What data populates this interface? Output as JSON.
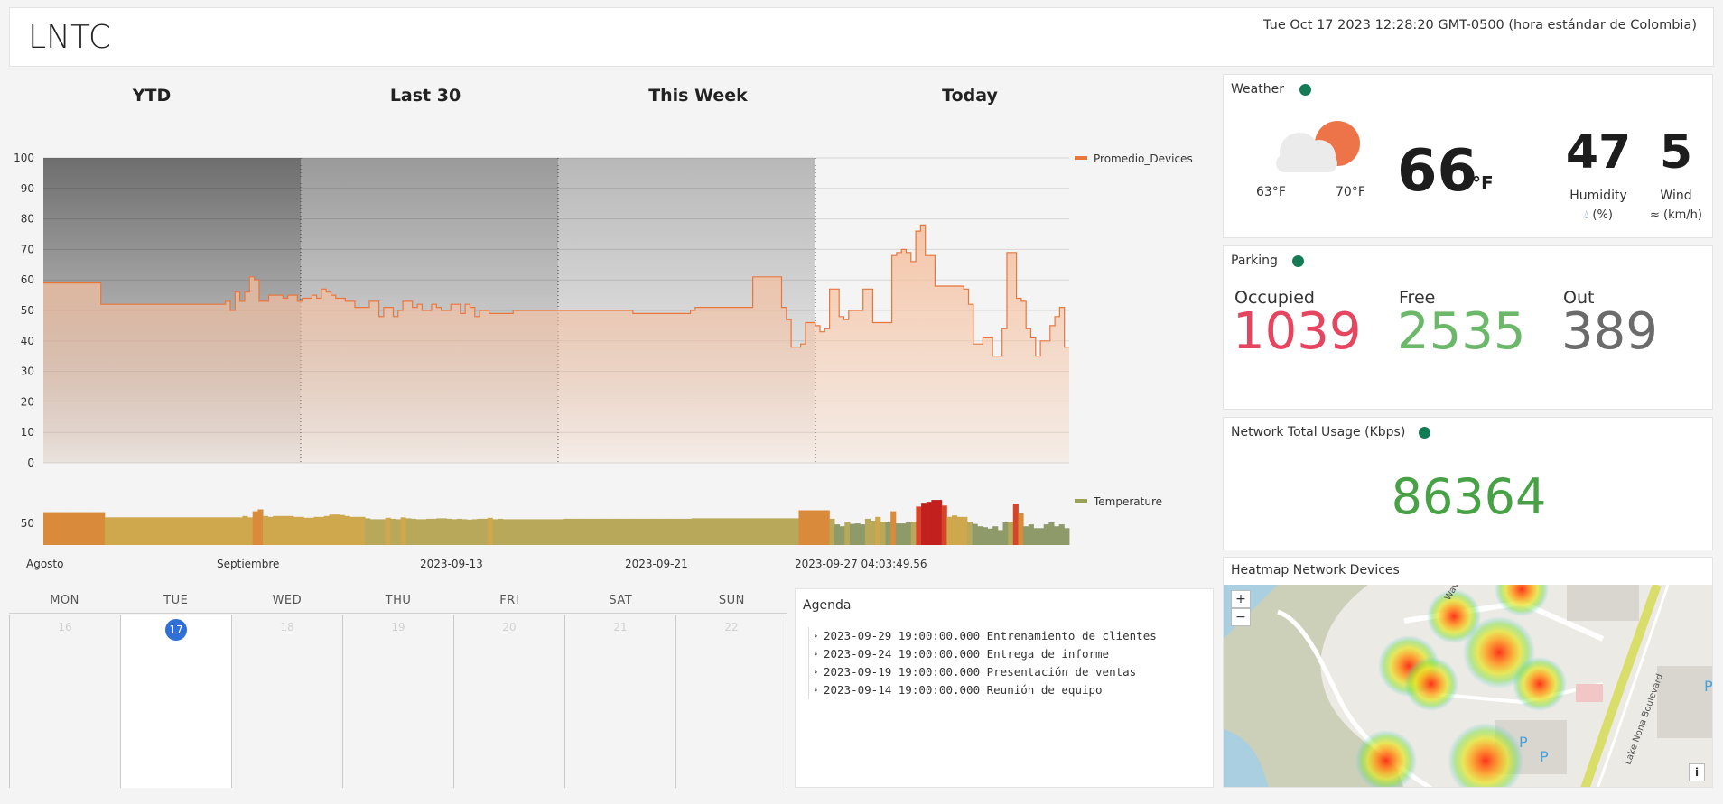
{
  "header": {
    "title": "LNTC",
    "clock": "Tue Oct 17 2023 12:28:20 GMT-0500 (hora estándar de Colombia)"
  },
  "periods": [
    "YTD",
    "Last 30",
    "This Week",
    "Today"
  ],
  "chart_data": [
    {
      "type": "area",
      "ylim": [
        0,
        100
      ],
      "yticks": [
        "100",
        "90",
        "80",
        "70",
        "60",
        "50",
        "40",
        "30",
        "20",
        "10",
        "0"
      ],
      "legend": "Promedio_Devices",
      "series_color": "#e8773e",
      "values": [
        59,
        59,
        59,
        59,
        59,
        59,
        59,
        59,
        59,
        59,
        59,
        59,
        52,
        52,
        52,
        52,
        52,
        52,
        52,
        52,
        52,
        52,
        52,
        52,
        52,
        52,
        52,
        52,
        52,
        52,
        52,
        52,
        52,
        52,
        52,
        52,
        52,
        52,
        53,
        50,
        56,
        53,
        56,
        61,
        60,
        53,
        53,
        55,
        55,
        55,
        54,
        55,
        55,
        53,
        54,
        54,
        55,
        54,
        57,
        56,
        55,
        54,
        54,
        53,
        53,
        51,
        51,
        51,
        53,
        53,
        48,
        51,
        51,
        48,
        50,
        53,
        53,
        51,
        52,
        50,
        50,
        52,
        51,
        50,
        50,
        52,
        52,
        49,
        52,
        51,
        48,
        50,
        50,
        49,
        49,
        49,
        49,
        49,
        50,
        50,
        50,
        50,
        50,
        50,
        50,
        50,
        50,
        50,
        50,
        50,
        50,
        50,
        50,
        50,
        50,
        50,
        50,
        50,
        50,
        50,
        50,
        50,
        50,
        49,
        49,
        49,
        49,
        49,
        49,
        49,
        49,
        49,
        49,
        49,
        49,
        50,
        51,
        51,
        51,
        51,
        51,
        51,
        51,
        51,
        51,
        51,
        51,
        51,
        61,
        61,
        61,
        61,
        61,
        61,
        51,
        47,
        38,
        38,
        39,
        46,
        46,
        45,
        43,
        44,
        57,
        57,
        48,
        47,
        50,
        50,
        50,
        57,
        57,
        46,
        46,
        46,
        46,
        68,
        69,
        70,
        69,
        66,
        76,
        78,
        68,
        68,
        58,
        58,
        58,
        58,
        58,
        58,
        57,
        52,
        39,
        39,
        41,
        41,
        35,
        35,
        44,
        69,
        69,
        54,
        53,
        44,
        41,
        35,
        40,
        40,
        45,
        48,
        51,
        38
      ],
      "x_labels": [
        "Agosto",
        "Septiembre",
        "2023-09-13",
        "2023-09-21",
        "2023-09-27 04:03:49.56"
      ]
    },
    {
      "type": "bar",
      "legend": "Temperature",
      "series_color": "#9aa25a",
      "ytick": "50",
      "values": [
        70,
        70,
        70,
        70,
        70,
        70,
        70,
        70,
        70,
        70,
        70,
        70,
        59,
        59,
        59,
        59,
        59,
        59,
        59,
        59,
        59,
        59,
        59,
        59,
        59,
        59,
        59,
        59,
        59,
        59,
        59,
        59,
        59,
        59,
        59,
        59,
        59,
        59,
        59,
        62,
        59,
        72,
        76,
        62,
        60,
        62,
        62,
        62,
        62,
        60,
        60,
        58,
        58,
        60,
        60,
        62,
        65,
        65,
        64,
        62,
        60,
        60,
        60,
        57,
        55,
        55,
        55,
        58,
        56,
        55,
        59,
        57,
        56,
        55,
        55,
        56,
        56,
        57,
        57,
        56,
        55,
        56,
        55,
        54,
        55,
        56,
        56,
        58,
        55,
        56,
        55,
        55,
        55,
        55,
        55,
        55,
        55,
        55,
        55,
        55,
        55,
        55,
        56,
        56,
        56,
        56,
        56,
        56,
        56,
        56,
        56,
        56,
        56,
        56,
        56,
        56,
        56,
        56,
        56,
        56,
        56,
        56,
        56,
        56,
        56,
        56,
        56,
        57,
        57,
        57,
        57,
        57,
        57,
        57,
        57,
        57,
        57,
        57,
        57,
        57,
        57,
        57,
        57,
        57,
        57,
        57,
        57,
        57,
        74,
        74,
        74,
        74,
        74,
        74,
        56,
        44,
        40,
        50,
        45,
        46,
        44,
        56,
        52,
        60,
        50,
        48,
        72,
        46,
        46,
        48,
        50,
        82,
        90,
        92,
        96,
        96,
        84,
        60,
        63,
        60,
        60,
        50,
        45,
        40,
        38,
        35,
        40,
        32,
        48,
        50,
        88,
        68,
        40,
        44,
        36,
        36,
        44,
        48,
        40,
        44,
        36
      ]
    }
  ],
  "calendar": {
    "days": [
      "MON",
      "TUE",
      "WED",
      "THU",
      "FRI",
      "SAT",
      "SUN"
    ],
    "dates": [
      "16",
      "17",
      "18",
      "19",
      "20",
      "21",
      "22"
    ],
    "today_index": 1
  },
  "agenda": {
    "title": "Agenda",
    "items": [
      "2023-09-29 19:00:00.000 Entrenamiento de clientes",
      "2023-09-24 19:00:00.000 Entrega de informe",
      "2023-09-19 19:00:00.000 Presentación de ventas",
      "2023-09-14 19:00:00.000 Reunión de equipo"
    ]
  },
  "weather": {
    "title": "Weather",
    "low": "63°F",
    "high": "70°F",
    "temp": "66",
    "unit": "°F",
    "humidity": "47",
    "humidity_label": "Humidity",
    "humidity_unit": "(%)",
    "wind": "5",
    "wind_label": "Wind",
    "wind_unit": "(km/h)",
    "icon": "partly-cloudy-icon"
  },
  "parking": {
    "title": "Parking",
    "occupied_label": "Occupied",
    "occupied": "1039",
    "free_label": "Free",
    "free": "2535",
    "out_label": "Out",
    "out": "389",
    "colors": {
      "occupied": "#e64560",
      "free": "#6cb86a",
      "out": "#6b6b6b"
    }
  },
  "network": {
    "title": "Network Total Usage (Kbps)",
    "value": "86364"
  },
  "heatmap": {
    "title": "Heatmap Network Devices",
    "zoom_in": "+",
    "zoom_out": "−",
    "info": "i",
    "street_labels": [
      "Wave",
      "Lake Nona Boulevard"
    ],
    "parking_labels": [
      "P",
      "P",
      "P"
    ]
  },
  "status_color": "#137c55"
}
